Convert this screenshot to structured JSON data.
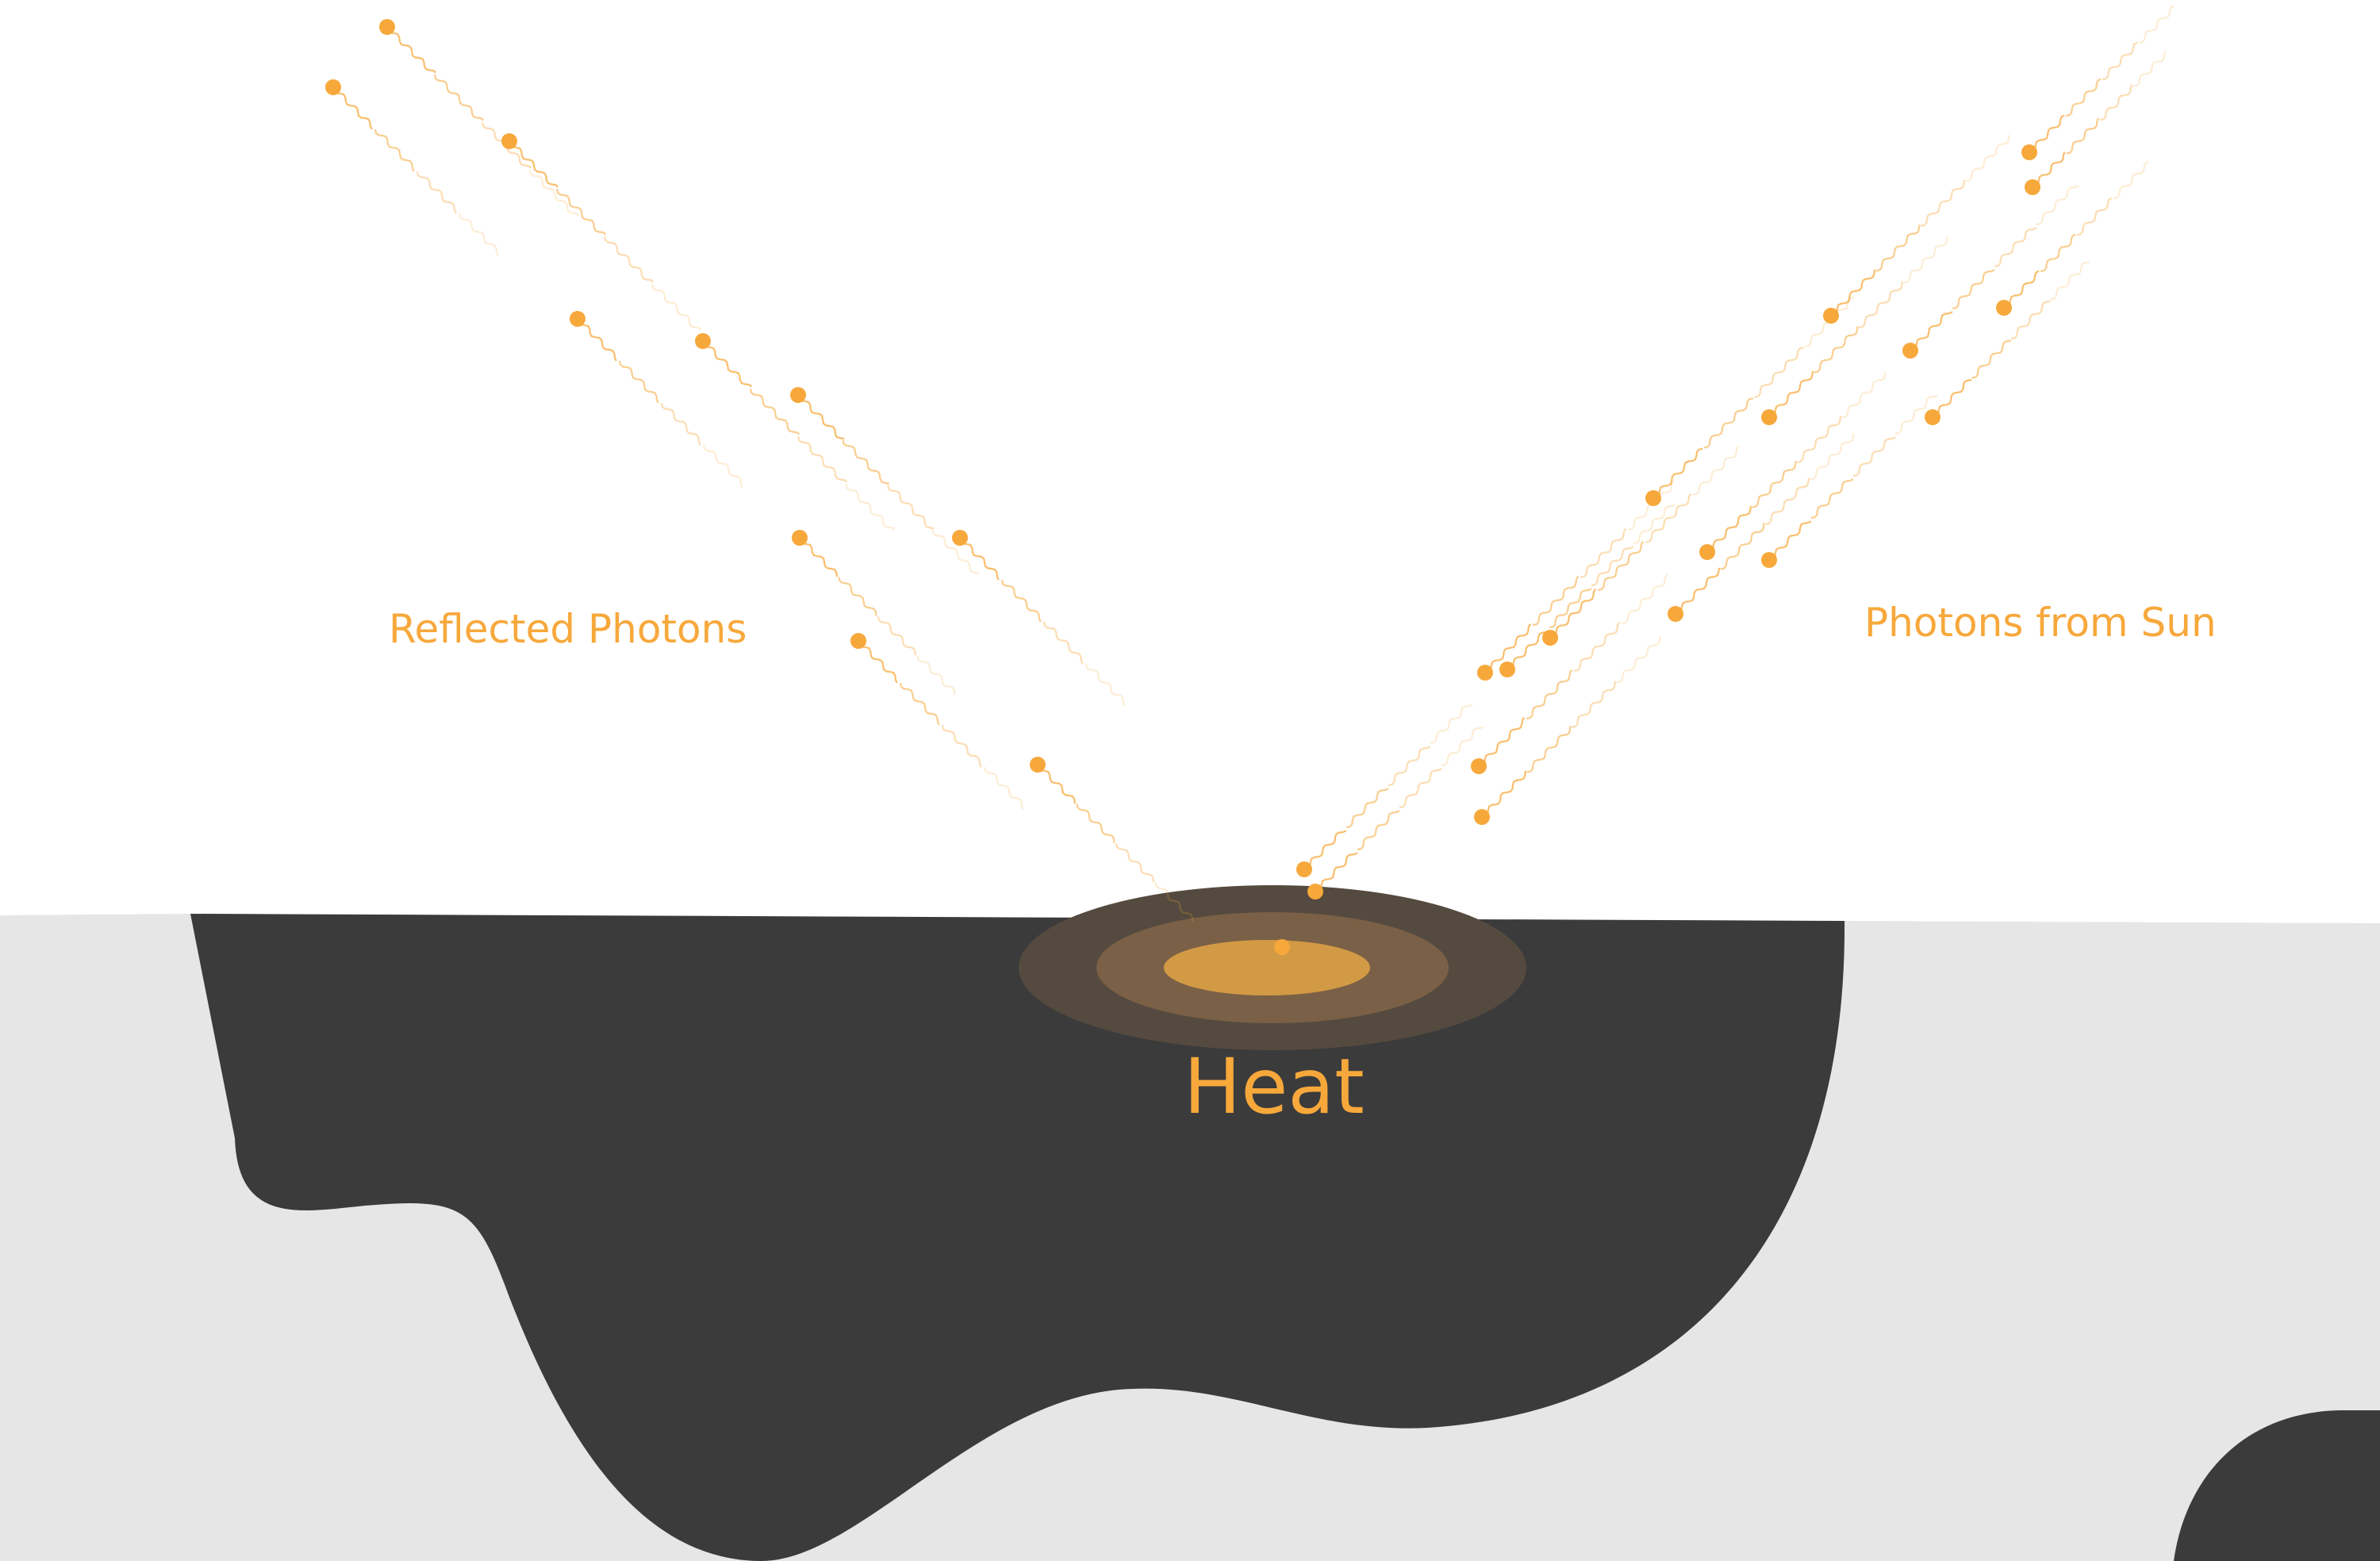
{
  "labels": {
    "reflected": "Reflected Photons",
    "incoming": "Photons from Sun",
    "heat": "Heat"
  },
  "colors": {
    "photon": "#f7a83b",
    "ground": "#e5e6e5",
    "dark_body": "#3b3b3b",
    "heat_outer": "#554a3f",
    "heat_mid": "#7a6046",
    "heat_core": "#d39a45",
    "label": "#f7a83b"
  },
  "photons": {
    "incoming_count": 18,
    "reflected_count": 10,
    "glyph": "wavy-trail photon"
  }
}
